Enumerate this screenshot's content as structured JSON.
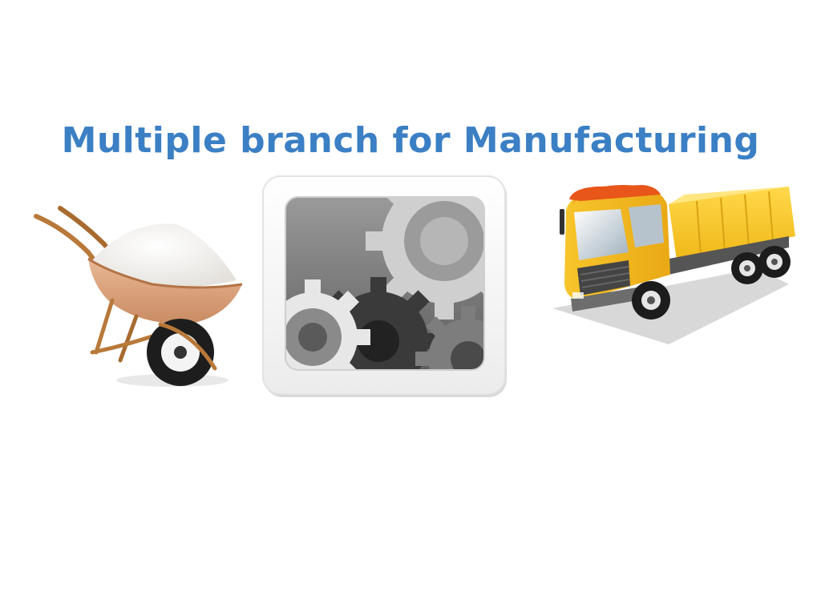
{
  "slide": {
    "title": "Multiple branch for Manufacturing",
    "title_color": "#3b7fc4"
  },
  "illustrations": [
    {
      "name": "wheelbarrow-icon"
    },
    {
      "name": "gears-icon"
    },
    {
      "name": "dump-truck-icon"
    }
  ],
  "colors": {
    "sand": "#f3f1ee",
    "bucket": "#d9a27c",
    "frame": "#b8793a",
    "tire": "#1d1d1d",
    "truck_body": "#f4c21b",
    "truck_cab": "#f2b51b",
    "truck_roof": "#e8561a",
    "gear_dark": "#3a3a3a",
    "gear_mid": "#7d7d7d",
    "gear_light": "#d6d6d6"
  }
}
